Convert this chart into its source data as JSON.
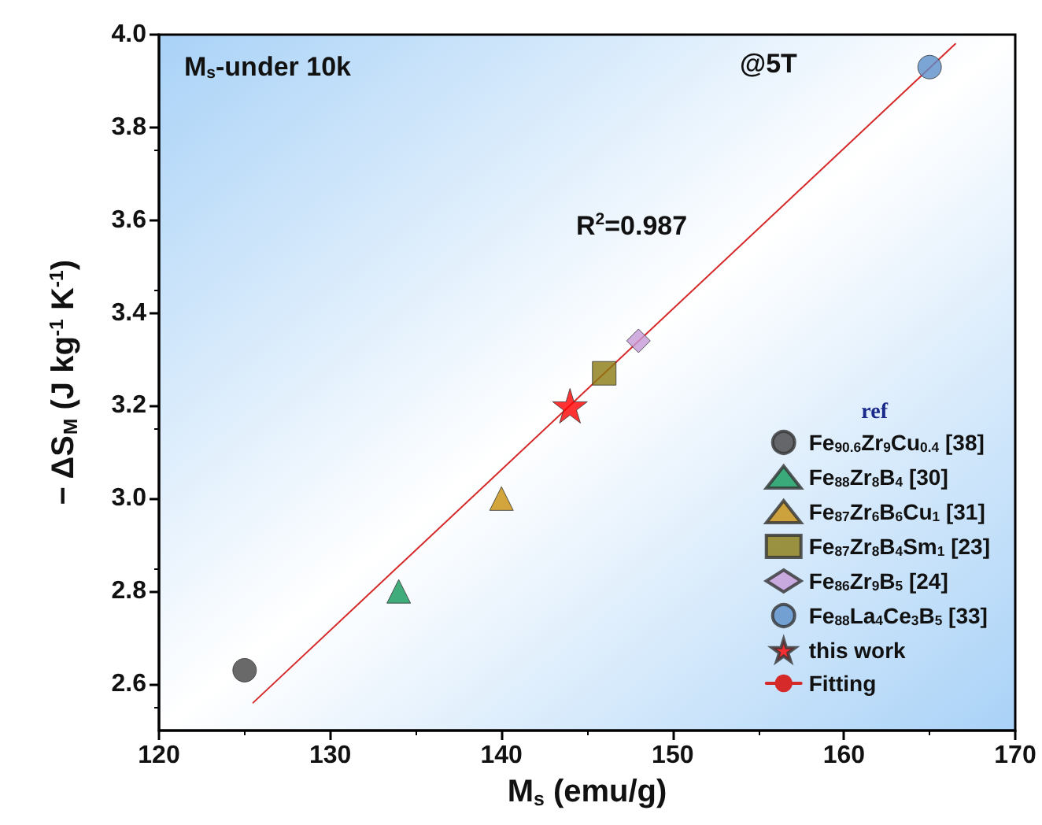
{
  "chart_data": {
    "type": "scatter",
    "xlabel": "M$_{s}$ (emu/g)",
    "ylabel": "− ΔS$_{M}$ (J kg$^{-1}$ K$^{-1}$)",
    "legend_title": "ref",
    "annotations": [
      "M$_{s}$-under 10k",
      "@5T",
      "R$^{2}$=0.987"
    ],
    "xlim": [
      120,
      170
    ],
    "xticks": [
      120,
      130,
      140,
      150,
      160,
      170
    ],
    "ylim": [
      2.5,
      4.0
    ],
    "yticks": [
      2.6,
      2.8,
      {
        "value": 3.0,
        "label": "3.0"
      },
      3.2,
      3.4,
      3.6,
      3.8,
      {
        "value": 4.0,
        "label": "4.0"
      }
    ],
    "grid": false,
    "legend": "bottom right",
    "series": [
      {
        "name": "Fe$_{90.6}$Zr$_{9}$Cu$_{0.4}$ [38]",
        "color": "#444444",
        "marker": "circle",
        "x": [
          125
        ],
        "values": [
          2.63
        ]
      },
      {
        "name": "Fe$_{88}$Zr$_{8}$B$_{4}$ [30]",
        "color": "#12995a",
        "marker": "triangle",
        "x": [
          134
        ],
        "values": [
          2.8
        ]
      },
      {
        "name": "Fe$_{87}$Zr$_{6}$B$_{6}$Cu$_{1}$ [31]",
        "color": "#c98e0c",
        "marker": "triangle",
        "x": [
          140
        ],
        "values": [
          3.0
        ]
      },
      {
        "name": "Fe$_{87}$Zr$_{8}$B$_{4}$Sm$_{1}$ [23]",
        "color": "#8a7a12",
        "marker": "square",
        "x": [
          146
        ],
        "values": [
          3.27
        ]
      },
      {
        "name": "Fe$_{86}$Zr$_{9}$B$_{5}$ [24]",
        "color": "#c59ad8",
        "marker": "diamond",
        "x": [
          148
        ],
        "values": [
          3.34
        ]
      },
      {
        "name": "Fe$_{88}$La$_{4}$Ce$_{3}$B$_{5}$ [33]",
        "color": "#5b8fc9",
        "marker": "circle",
        "x": [
          165
        ],
        "values": [
          3.93
        ]
      },
      {
        "name": "this work",
        "color": "#ff0000",
        "marker": "star",
        "x": [
          144
        ],
        "values": [
          3.2
        ]
      },
      {
        "name": "Fitting",
        "type": "line",
        "color": "#d62a2a",
        "marker": "none",
        "line_style": "solid",
        "x": [
          125.5,
          166.5
        ],
        "values": [
          2.56,
          3.98
        ]
      }
    ]
  }
}
